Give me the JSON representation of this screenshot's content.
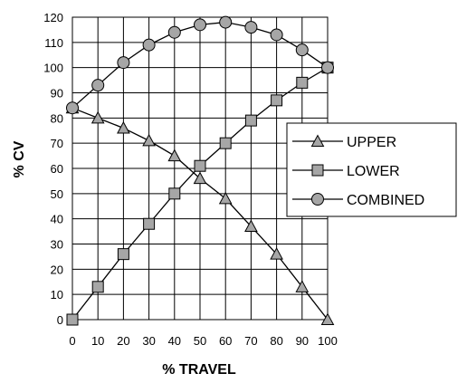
{
  "chart_data": {
    "type": "line",
    "xlabel": "% TRAVEL",
    "ylabel": "% CV",
    "xlim": [
      0,
      100
    ],
    "ylim": [
      0,
      120
    ],
    "x_ticks": [
      0,
      10,
      20,
      30,
      40,
      50,
      60,
      70,
      80,
      90,
      100
    ],
    "y_ticks": [
      0,
      10,
      20,
      30,
      40,
      50,
      60,
      70,
      80,
      90,
      100,
      110,
      120
    ],
    "grid": true,
    "legend_position": "right",
    "x": [
      0,
      10,
      20,
      30,
      40,
      50,
      60,
      70,
      80,
      90,
      100
    ],
    "series": [
      {
        "name": "UPPER",
        "marker": "triangle",
        "values": [
          84,
          80,
          76,
          71,
          65,
          56,
          48,
          37,
          26,
          13,
          0
        ]
      },
      {
        "name": "LOWER",
        "marker": "square",
        "values": [
          0,
          13,
          26,
          38,
          50,
          61,
          70,
          79,
          87,
          94,
          100
        ]
      },
      {
        "name": "COMBINED",
        "marker": "circle",
        "values": [
          84,
          93,
          102,
          109,
          114,
          117,
          118,
          116,
          113,
          107,
          100
        ]
      }
    ],
    "colors": {
      "line": "#000000",
      "marker_fill": "#a6a6a6",
      "marker_stroke": "#000000",
      "grid": "#000000"
    }
  }
}
